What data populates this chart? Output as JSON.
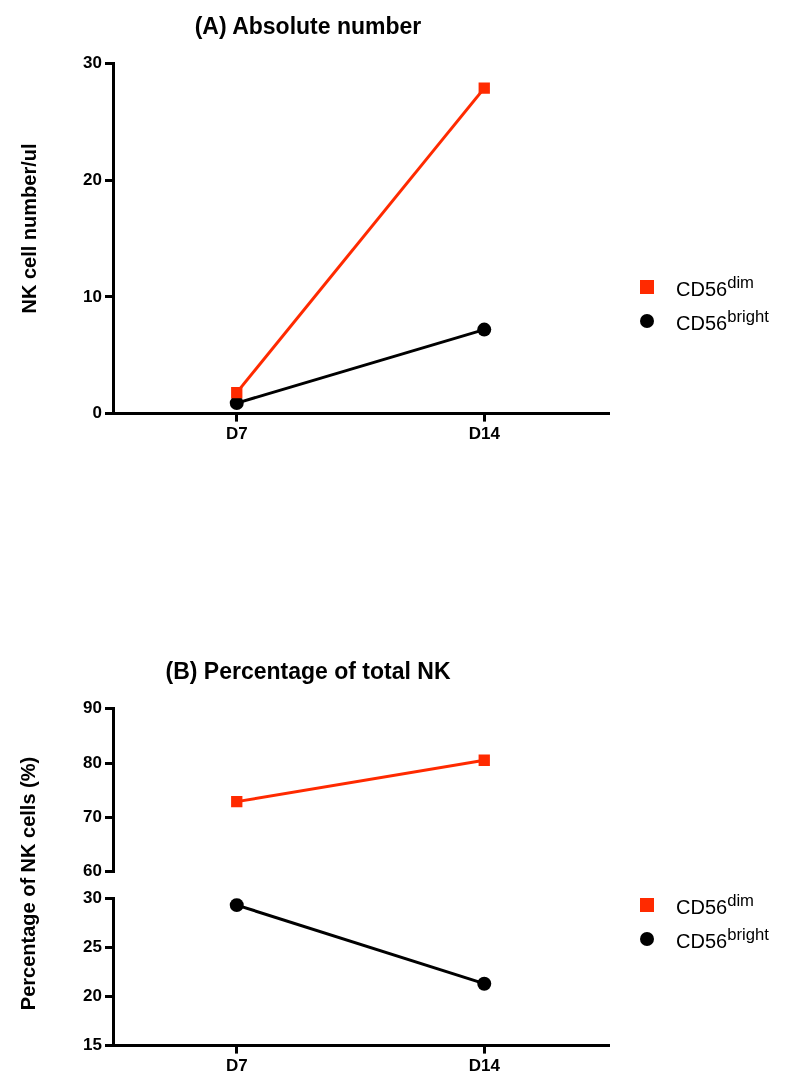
{
  "chart_data": [
    {
      "type": "line",
      "title": "(A) Absolute number",
      "ylabel": "NK cell number/ul",
      "categories": [
        "D7",
        "D14"
      ],
      "ylim": [
        0,
        30
      ],
      "yticks": [
        0,
        10,
        20,
        30
      ],
      "grid": false,
      "legend": "right",
      "series": [
        {
          "name": "CD56$^{dim}$",
          "color": "#ff2a00",
          "marker": "square",
          "values": [
            1.8,
            27.9
          ]
        },
        {
          "name": "CD56$^{bright}$",
          "color": "#000000",
          "marker": "circle",
          "values": [
            0.9,
            7.2
          ]
        }
      ]
    },
    {
      "type": "line",
      "title": "(B) Percentage of total NK",
      "categories": [
        null,
        null
      ],
      "ylim": [
        60,
        90
      ],
      "yticks": [
        60,
        70,
        80,
        90
      ],
      "grid": false,
      "tick_labels": "y",
      "series": [
        {
          "color": "#ff2a00",
          "marker": "square",
          "values": [
            72.9,
            80.5
          ]
        }
      ]
    },
    {
      "type": "line",
      "ylabel": "Percentage of NK cells (%)",
      "categories": [
        "D7",
        "D14"
      ],
      "ylim": [
        15,
        30
      ],
      "yticks": [
        15,
        20,
        25,
        30
      ],
      "grid": false,
      "legend": "right",
      "series": [
        {
          "name": "CD56$^{dim}$",
          "color": "#ff2a00",
          "marker": "square",
          "values": [
            null,
            null
          ]
        },
        {
          "name": "CD56$^{bright}$",
          "color": "#000000",
          "marker": "circle",
          "values": [
            29.3,
            21.3
          ]
        }
      ]
    }
  ]
}
